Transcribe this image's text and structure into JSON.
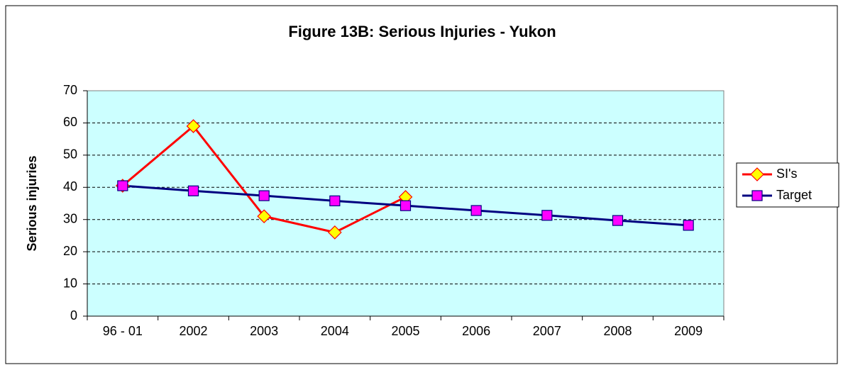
{
  "chart_data": {
    "type": "line",
    "title": "Figure 13B: Serious Injuries - Yukon",
    "y_label": "Serious injuries",
    "categories": [
      "96 - 01",
      "2002",
      "2003",
      "2004",
      "2005",
      "2006",
      "2007",
      "2008",
      "2009"
    ],
    "series": [
      {
        "name": "SI's",
        "color": "#ff0000",
        "marker_color": "#ffff00",
        "marker": "diamond",
        "values": [
          40.5,
          59,
          31,
          26,
          37,
          null,
          null,
          null,
          null
        ]
      },
      {
        "name": "Target",
        "color": "#000080",
        "marker_color": "#ff00ff",
        "marker": "square",
        "values": [
          40.5,
          38.9,
          37.4,
          35.8,
          34.3,
          32.8,
          31.3,
          29.7,
          28.2
        ]
      }
    ],
    "ylim": [
      0,
      70
    ],
    "yticks": [
      0,
      10,
      20,
      30,
      40,
      50,
      60,
      70
    ],
    "grid": true,
    "legend": "right",
    "plot_background": "#ccffff"
  }
}
